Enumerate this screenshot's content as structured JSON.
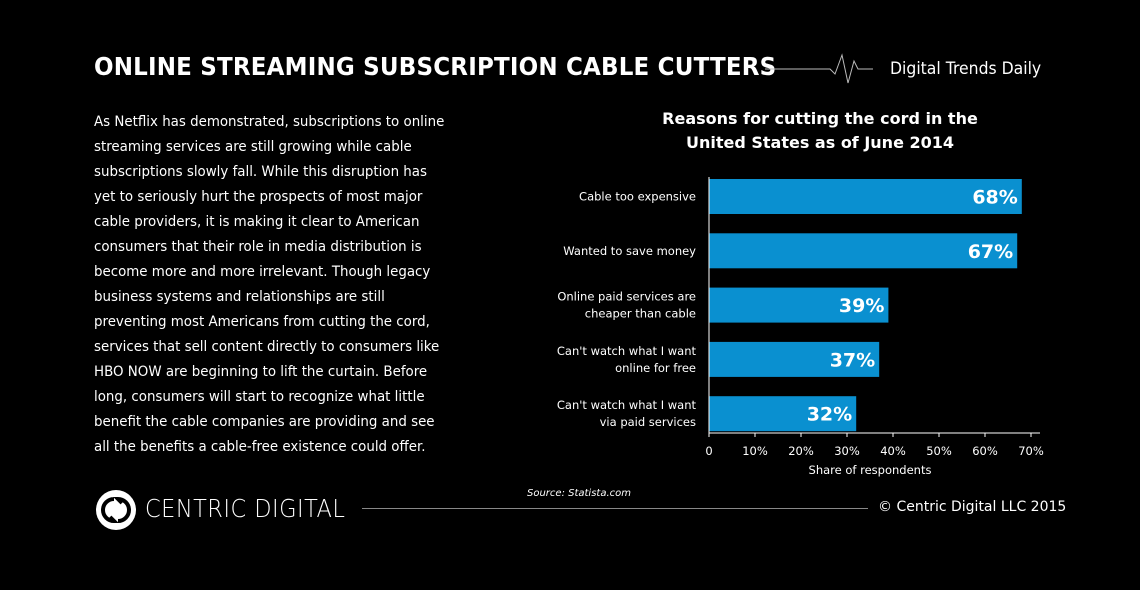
{
  "header": {
    "title": "ONLINE STREAMING SUBSCRIPTION CABLE CUTTERS",
    "brand": "Digital Trends Daily",
    "pulse_icon": "heartbeat-line-icon"
  },
  "body_text": "As Netflix has demonstrated, subscriptions to online streaming services are still growing while cable subscriptions slowly fall. While this disruption has yet to seriously hurt the prospects of most major cable providers, it is making it clear to American consumers that their role in media distribution is become more and more irrelevant. Though legacy business systems and relationships are still preventing most Americans from cutting the cord, services that sell content directly to consumers like HBO NOW are beginning to lift the curtain. Before long, consumers will start to recognize what little benefit the cable companies are providing and see all the benefits a cable-free existence could offer.",
  "chart_data": {
    "type": "bar",
    "orientation": "horizontal",
    "title": "Reasons for cutting the cord in the United States as of June 2014",
    "categories": [
      [
        "Cable too expensive"
      ],
      [
        "Wanted to save money"
      ],
      [
        "Online paid services are",
        "cheaper than cable"
      ],
      [
        "Can't watch what I want",
        "online for free"
      ],
      [
        "Can't watch what I want",
        "via paid services"
      ]
    ],
    "values": [
      68,
      67,
      39,
      37,
      32
    ],
    "data_labels": [
      "68%",
      "67%",
      "39%",
      "37%",
      "32%"
    ],
    "xlabel": "Share of respondents",
    "xlim": [
      0,
      70
    ],
    "xticks": [
      "0",
      "10%",
      "20%",
      "30%",
      "40%",
      "50%",
      "60%",
      "70%"
    ],
    "grid": false,
    "bar_color": "#0a90d0"
  },
  "footer": {
    "source": "Source: Statista.com",
    "logo_text": "CENTRIC DIGITAL",
    "logo_icon": "centric-digital-logo-icon",
    "copyright": "© Centric Digital LLC 2015"
  }
}
